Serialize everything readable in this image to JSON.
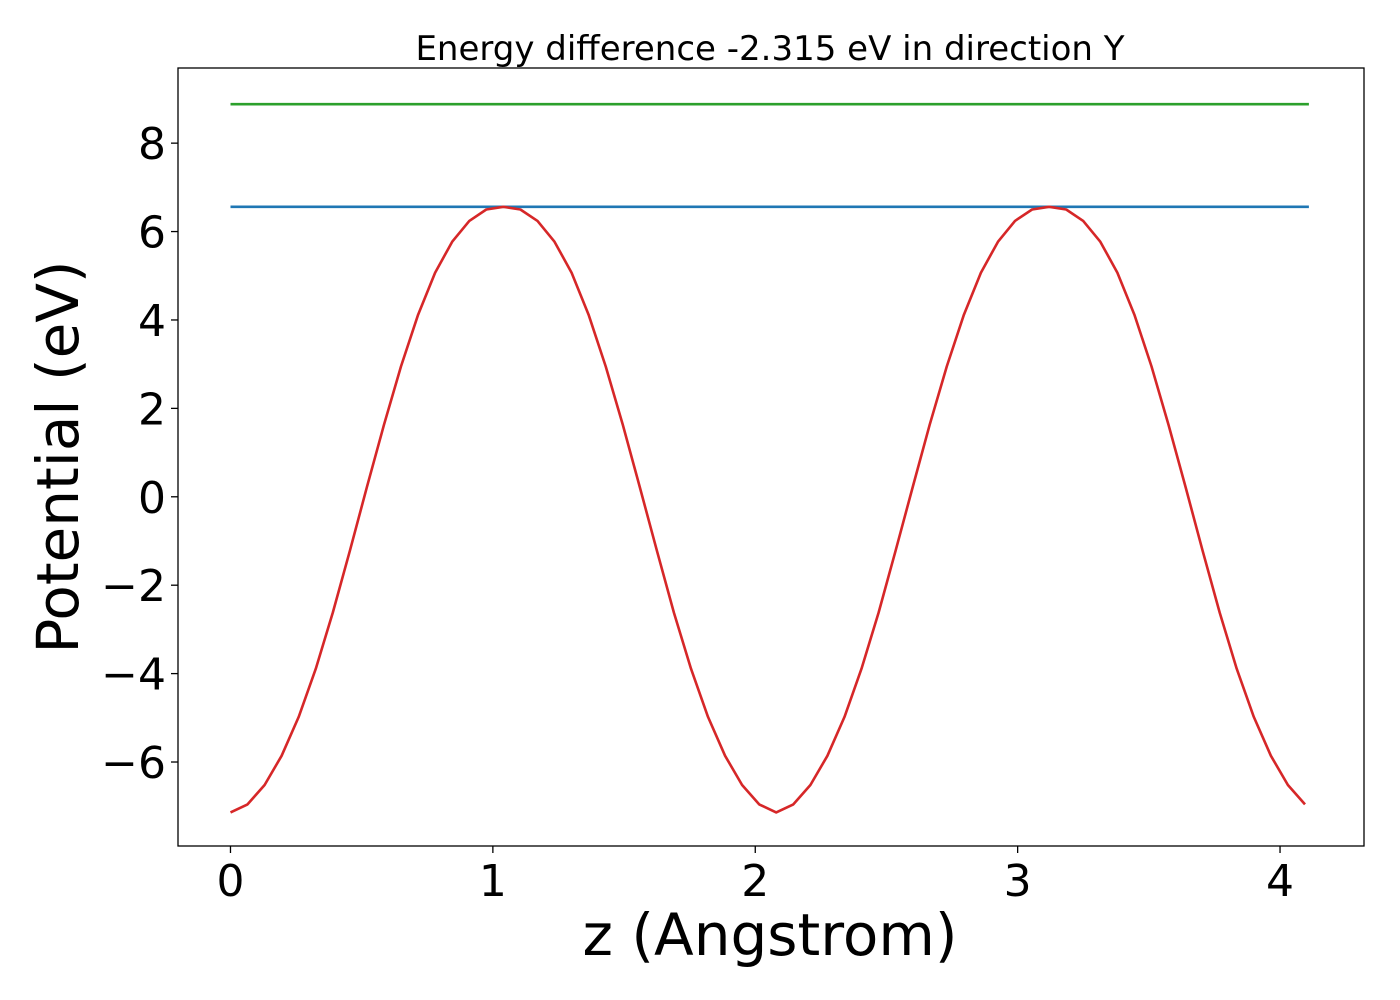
{
  "chart_data": {
    "type": "line",
    "title": "Energy difference -2.315 eV in direction Y",
    "xlabel": "z (Angstrom)",
    "ylabel": "Potential (eV)",
    "xlim": [
      -0.2,
      4.32
    ],
    "ylim": [
      -7.9,
      9.7
    ],
    "xticks": [
      0,
      1,
      2,
      3,
      4
    ],
    "yticks": [
      -6,
      -4,
      -2,
      0,
      2,
      4,
      6,
      8
    ],
    "grid": false,
    "legend": "none",
    "series": [
      {
        "color": "#1f77b4",
        "x": [
          0,
          4.11
        ],
        "y": [
          6.56,
          6.56
        ]
      },
      {
        "color": "#2ca02c",
        "x": [
          0,
          4.11
        ],
        "y": [
          8.88,
          8.88
        ]
      },
      {
        "color": "#d62728",
        "x": [
          0,
          0.065,
          0.13,
          0.195,
          0.26,
          0.325,
          0.39,
          0.455,
          0.52,
          0.585,
          0.65,
          0.715,
          0.78,
          0.845,
          0.91,
          0.975,
          1.04,
          1.105,
          1.17,
          1.235,
          1.3,
          1.365,
          1.43,
          1.495,
          1.56,
          1.625,
          1.69,
          1.755,
          1.82,
          1.885,
          1.95,
          2.015,
          2.08,
          2.145,
          2.21,
          2.275,
          2.34,
          2.405,
          2.47,
          2.535,
          2.6,
          2.665,
          2.73,
          2.795,
          2.86,
          2.925,
          2.99,
          3.055,
          3.12,
          3.185,
          3.25,
          3.315,
          3.38,
          3.445,
          3.51,
          3.575,
          3.64,
          3.705,
          3.77,
          3.835,
          3.9,
          3.965,
          4.03,
          4.095
        ],
        "y": [
          -7.14,
          -6.96,
          -6.52,
          -5.86,
          -4.98,
          -3.89,
          -2.62,
          -1.22,
          0.22,
          1.63,
          2.95,
          4.12,
          5.07,
          5.77,
          6.24,
          6.5,
          6.56,
          6.5,
          6.24,
          5.77,
          5.07,
          4.12,
          2.95,
          1.63,
          0.22,
          -1.22,
          -2.62,
          -3.89,
          -4.98,
          -5.86,
          -6.52,
          -6.96,
          -7.14,
          -6.96,
          -6.52,
          -5.86,
          -4.98,
          -3.89,
          -2.62,
          -1.22,
          0.22,
          1.63,
          2.95,
          4.12,
          5.07,
          5.77,
          6.24,
          6.5,
          6.56,
          6.5,
          6.24,
          5.77,
          5.07,
          4.12,
          2.95,
          1.63,
          0.22,
          -1.22,
          -2.62,
          -3.89,
          -4.98,
          -5.86,
          -6.52,
          -6.96
        ]
      }
    ]
  }
}
